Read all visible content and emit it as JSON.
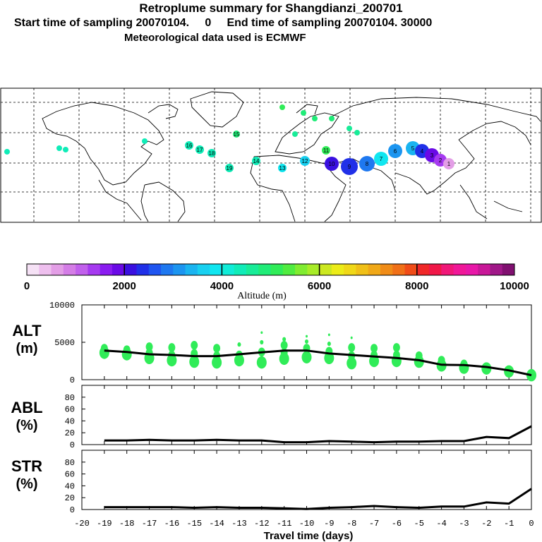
{
  "header": {
    "title": "Retroplume summary for Shangdianzi_200701",
    "sampling": "Start time of sampling 20070104.     0     End time of sampling 20070104. 30000",
    "met": "Meteorological data used is ECMWF"
  },
  "map": {
    "plume_labels": [
      "19",
      "18",
      "17",
      "16",
      "15",
      "14",
      "13",
      "12",
      "11",
      "10",
      "9",
      "8",
      "7",
      "6",
      "5",
      "4",
      "3",
      "2",
      "1"
    ]
  },
  "colorbar": {
    "tick_labels": [
      "0",
      "2000",
      "4000",
      "6000",
      "8000",
      "10000"
    ],
    "label": "Altitude (m)",
    "colors": [
      "#f5e1f5",
      "#eebfee",
      "#e39ee6",
      "#d47de6",
      "#c160ec",
      "#a63af0",
      "#8a1cf0",
      "#6a0ae6",
      "#3a10e0",
      "#2030e8",
      "#1f55f0",
      "#1e78f0",
      "#1c95f0",
      "#1ab4f0",
      "#18d0f0",
      "#10e6f0",
      "#10ecd8",
      "#10ecb8",
      "#18ec98",
      "#20ec78",
      "#30ec58",
      "#50ec40",
      "#80ec30",
      "#a8ec28",
      "#cce820",
      "#ecec18",
      "#f0d818",
      "#f0c018",
      "#f0a818",
      "#f08c18",
      "#f07018",
      "#f04c18",
      "#f02828",
      "#f01848",
      "#f01878",
      "#f01898",
      "#e818a8",
      "#c81898",
      "#a01888",
      "#801070"
    ]
  },
  "chart_data": [
    {
      "type": "line",
      "panel_label": [
        "ALT",
        "(m)"
      ],
      "x": [
        -19,
        -18,
        -17,
        -16,
        -15,
        -14,
        -13,
        -12,
        -11,
        -10,
        -9,
        -8,
        -7,
        -6,
        -5,
        -4,
        -3,
        -2,
        -1,
        0
      ],
      "series": [
        {
          "name": "mean altitude",
          "values": [
            3900,
            3700,
            3400,
            3300,
            3150,
            3150,
            3400,
            3650,
            3900,
            3900,
            3500,
            3300,
            3100,
            2900,
            2600,
            2000,
            1950,
            1700,
            1250,
            600
          ]
        }
      ],
      "scatter": [
        {
          "x": -19,
          "values": [
            3600,
            4200
          ]
        },
        {
          "x": -18,
          "values": [
            3400,
            4000
          ]
        },
        {
          "x": -17,
          "values": [
            2900,
            3600,
            4400
          ]
        },
        {
          "x": -16,
          "values": [
            2600,
            3300,
            4300
          ]
        },
        {
          "x": -15,
          "values": [
            2400,
            3500,
            4600
          ]
        },
        {
          "x": -14,
          "values": [
            2300,
            3200,
            4200
          ]
        },
        {
          "x": -13,
          "values": [
            2600,
            3300,
            4700
          ]
        },
        {
          "x": -12,
          "values": [
            2300,
            3700,
            5000,
            6300
          ]
        },
        {
          "x": -11,
          "values": [
            2800,
            3600,
            4600,
            5400
          ]
        },
        {
          "x": -10,
          "values": [
            3000,
            4200,
            5100,
            5800
          ]
        },
        {
          "x": -9,
          "values": [
            2900,
            3800,
            4800,
            6000
          ]
        },
        {
          "x": -8,
          "values": [
            2200,
            3200,
            4300,
            5600
          ]
        },
        {
          "x": -7,
          "values": [
            2500,
            3300,
            4200
          ]
        },
        {
          "x": -6,
          "values": [
            2500,
            3300,
            4300
          ]
        },
        {
          "x": -5,
          "values": [
            2400,
            3200
          ]
        },
        {
          "x": -4,
          "values": [
            1900,
            2600
          ]
        },
        {
          "x": -3,
          "values": [
            1600,
            2100
          ]
        },
        {
          "x": -2,
          "values": [
            1500
          ]
        },
        {
          "x": -1,
          "values": [
            1100
          ]
        },
        {
          "x": 0,
          "values": [
            600
          ]
        }
      ],
      "ylim": [
        0,
        10000
      ],
      "yticks": [
        "0",
        "5000",
        "10000"
      ]
    },
    {
      "type": "line",
      "panel_label": [
        "ABL",
        "(%)"
      ],
      "x": [
        -19,
        -18,
        -17,
        -16,
        -15,
        -14,
        -13,
        -12,
        -11,
        -10,
        -9,
        -8,
        -7,
        -6,
        -5,
        -4,
        -3,
        -2,
        -1,
        0
      ],
      "series": [
        {
          "name": "fraction in ABL",
          "values": [
            7,
            7,
            8,
            7,
            7,
            8,
            7,
            7,
            4,
            4,
            6,
            5,
            4,
            5,
            5,
            6,
            6,
            13,
            11,
            31
          ]
        }
      ],
      "ylim": [
        0,
        100
      ],
      "yticks": [
        "0",
        "20",
        "40",
        "60",
        "80"
      ]
    },
    {
      "type": "line",
      "panel_label": [
        "STR",
        "(%)"
      ],
      "x": [
        -19,
        -18,
        -17,
        -16,
        -15,
        -14,
        -13,
        -12,
        -11,
        -10,
        -9,
        -8,
        -7,
        -6,
        -5,
        -4,
        -3,
        -2,
        -1,
        0
      ],
      "series": [
        {
          "name": "fraction in stratosphere",
          "values": [
            4,
            4,
            4,
            4,
            3,
            4,
            3,
            3,
            2,
            1,
            3,
            4,
            6,
            4,
            3,
            5,
            5,
            12,
            10,
            35
          ]
        }
      ],
      "ylim": [
        0,
        100
      ],
      "yticks": [
        "0",
        "20",
        "40",
        "60",
        "80"
      ]
    }
  ],
  "x_axis": {
    "label": "Travel time (days)",
    "ticks": [
      "-20",
      "-19",
      "-18",
      "-17",
      "-16",
      "-15",
      "-14",
      "-13",
      "-12",
      "-11",
      "-10",
      "-9",
      "-8",
      "-7",
      "-6",
      "-5",
      "-4",
      "-3",
      "-2",
      "-1",
      "0"
    ]
  }
}
